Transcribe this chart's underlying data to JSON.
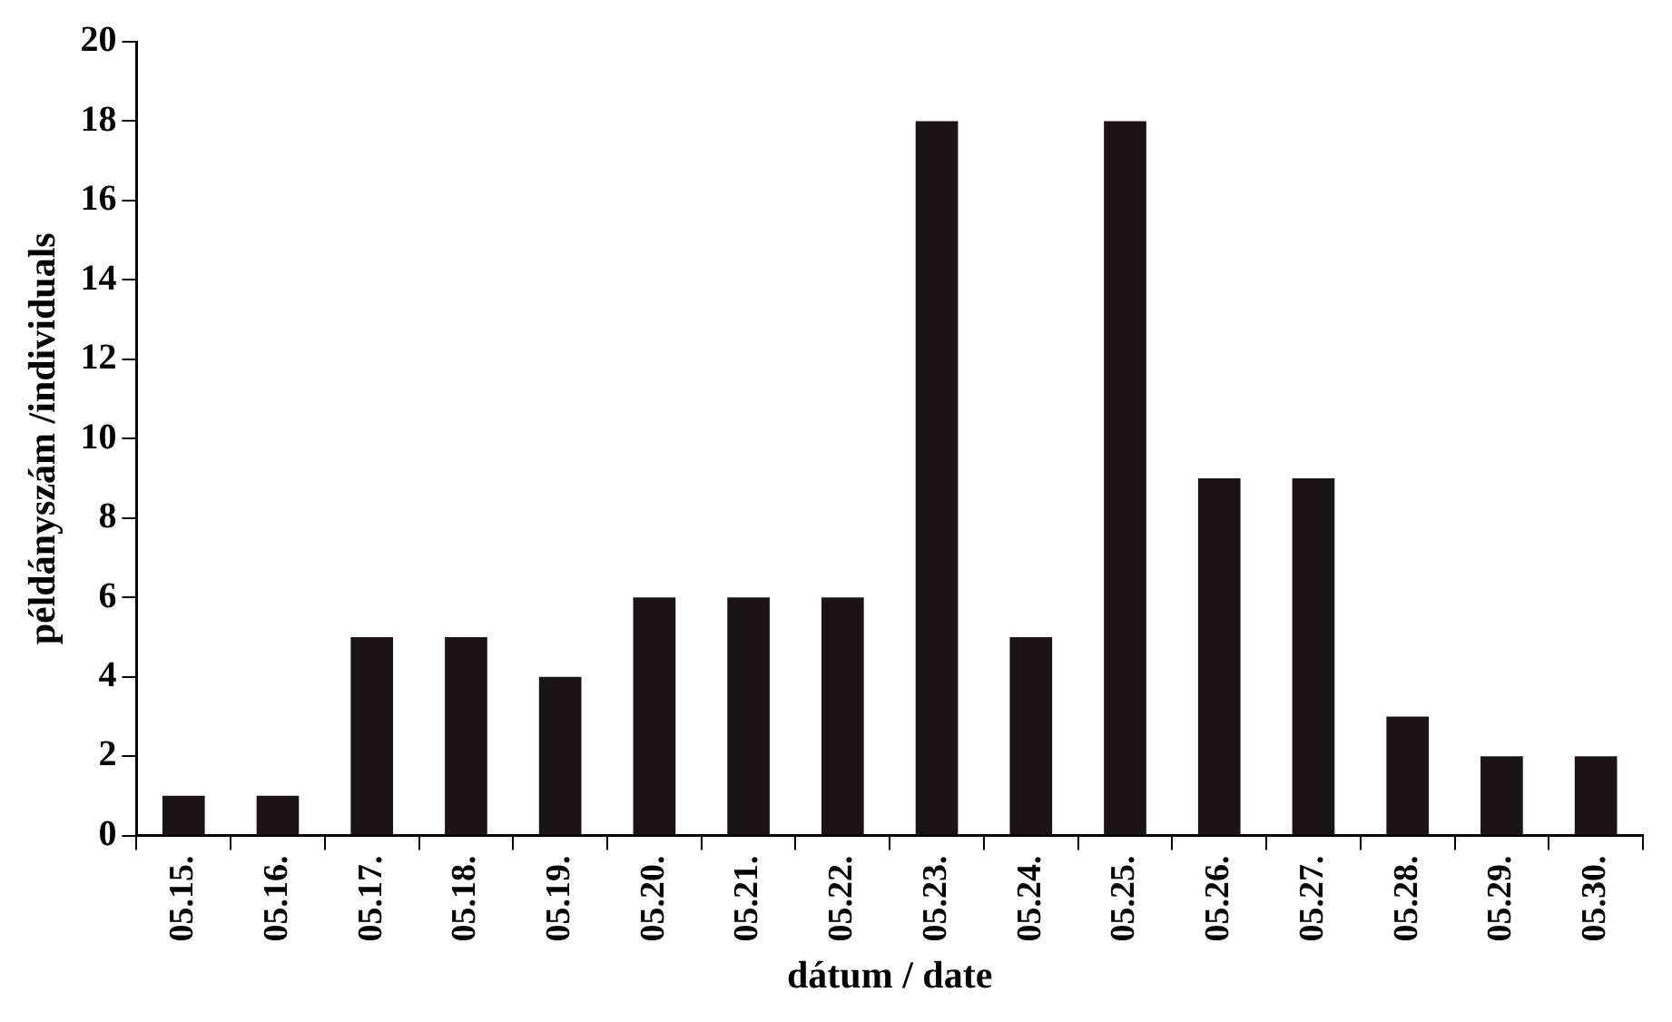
{
  "chart_data": {
    "type": "bar",
    "xlabel": "dátum / date",
    "ylabel": "példányszám /individuals",
    "categories": [
      "05.15.",
      "05.16.",
      "05.17.",
      "05.18.",
      "05.19.",
      "05.20.",
      "05.21.",
      "05.22.",
      "05.23.",
      "05.24.",
      "05.25.",
      "05.26.",
      "05.27.",
      "05.28.",
      "05.29.",
      "05.30."
    ],
    "values": [
      1,
      1,
      5,
      5,
      4,
      6,
      6,
      6,
      18,
      5,
      18,
      9,
      9,
      3,
      2,
      2
    ],
    "color": "#1c1414",
    "ylim": [
      0,
      20
    ],
    "yticks": [
      0,
      2,
      4,
      6,
      8,
      10,
      12,
      14,
      16,
      18,
      20
    ],
    "grid": false,
    "legend": false
  }
}
